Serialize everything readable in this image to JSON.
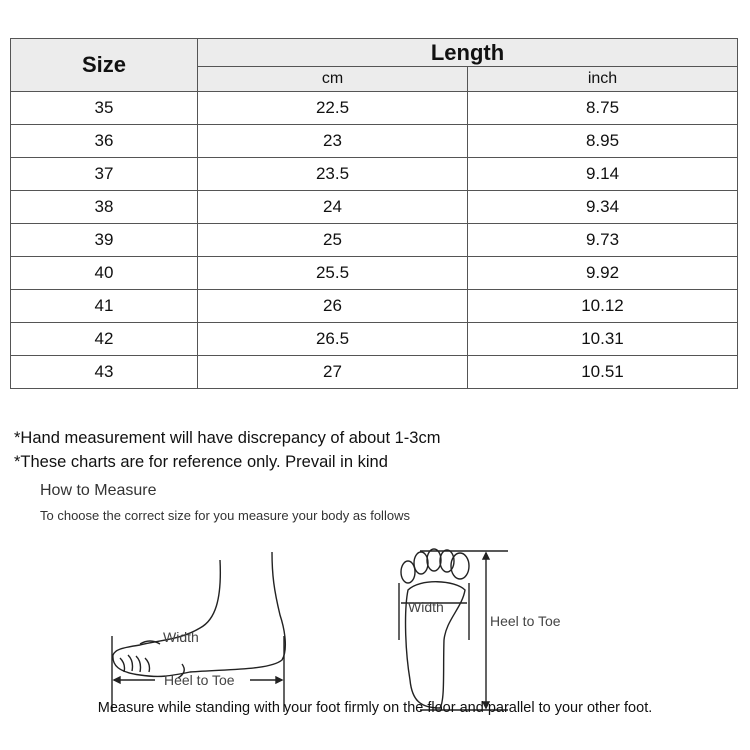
{
  "table": {
    "size_header": "Size",
    "length_header": "Length",
    "cm_header": "cm",
    "inch_header": "inch",
    "rows": [
      {
        "size": "35",
        "cm": "22.5",
        "inch": "8.75"
      },
      {
        "size": "36",
        "cm": "23",
        "inch": "8.95"
      },
      {
        "size": "37",
        "cm": "23.5",
        "inch": "9.14"
      },
      {
        "size": "38",
        "cm": "24",
        "inch": "9.34"
      },
      {
        "size": "39",
        "cm": "25",
        "inch": "9.73"
      },
      {
        "size": "40",
        "cm": "25.5",
        "inch": "9.92"
      },
      {
        "size": "41",
        "cm": "26",
        "inch": "10.12"
      },
      {
        "size": "42",
        "cm": "26.5",
        "inch": "10.31"
      },
      {
        "size": "43",
        "cm": "27",
        "inch": "10.51"
      }
    ]
  },
  "notes": [
    "*Hand measurement will have discrepancy of about 1-3cm",
    "*These charts are for reference only. Prevail in kind"
  ],
  "how_to": {
    "title": "How to Measure",
    "subtitle": "To choose the correct size for you measure your body as follows"
  },
  "diagram": {
    "side_width": "Width",
    "side_length": "Heel to Toe",
    "sole_width": "Width",
    "sole_length": "Heel to Toe"
  },
  "instruction": "Measure while standing with your foot firmly on the floor and parallel to your other foot."
}
